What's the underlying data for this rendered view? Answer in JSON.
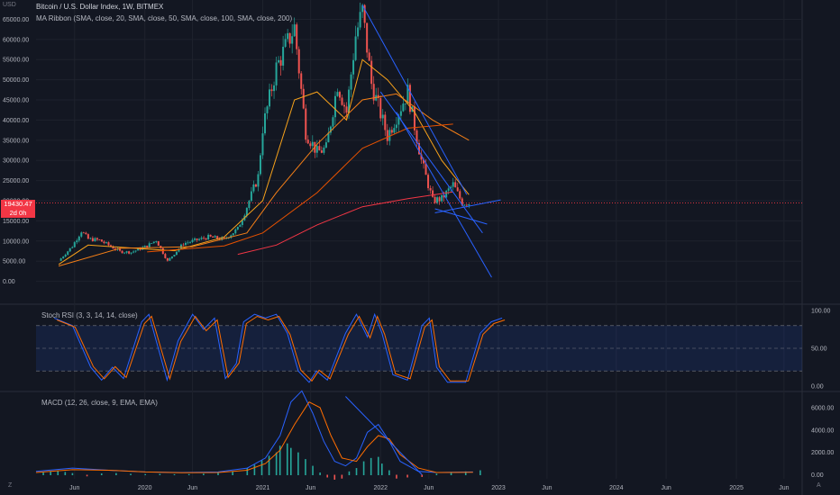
{
  "header": {
    "title": "Bitcoin / U.S. Dollar Index, 1W, BITMEX",
    "subtitle": "MA Ribbon (SMA, close, 20, SMA, close, 50, SMA, close, 100, SMA, close, 200)"
  },
  "price_box": {
    "value": "19430.47",
    "countdown": "2d 0h",
    "color": "#f23645"
  },
  "currency": "USD",
  "buttons": {
    "left": "Z",
    "right": "A"
  },
  "panes": {
    "stoch": {
      "title": "Stoch RSI (3, 3, 14, 14, close)",
      "ticks": [
        "100.00",
        "50.00",
        "0.00"
      ]
    },
    "macd": {
      "title": "MACD (12, 26, close, 9, EMA, EMA)",
      "ticks": [
        "6000.00",
        "4000.00",
        "2000.00",
        "0.00"
      ]
    }
  },
  "colors": {
    "bg": "#131722",
    "up": "#26a69a",
    "down": "#ef5350",
    "stoch_k": "#2962ff",
    "stoch_d": "#ff6d00",
    "draw": "#2962ff"
  },
  "chart_data": [
    {
      "type": "candlestick",
      "title": "Bitcoin / U.S. Dollar Index, 1W, BITMEX",
      "ylabel": "USD",
      "ylim": [
        -5000,
        68000
      ],
      "y_ticks": [
        "65000.00",
        "60000.00",
        "55000.00",
        "50000.00",
        "45000.00",
        "40000.00",
        "35000.00",
        "30000.00",
        "25000.00",
        "20000.00",
        "15000.00",
        "10000.00",
        "5000.00",
        "0.00"
      ],
      "x_ticks": [
        "Jun",
        "2020",
        "Jun",
        "2021",
        "Jun",
        "2022",
        "Jun",
        "2023",
        "Jun",
        "2024",
        "Jun",
        "2025",
        "Jun"
      ],
      "last_price": 19430.47,
      "price_path": [
        [
          "2019-04-15",
          5100
        ],
        [
          "2019-05-27",
          8700
        ],
        [
          "2019-06-24",
          12500
        ],
        [
          "2019-07-15",
          10500
        ],
        [
          "2019-08-19",
          10200
        ],
        [
          "2019-10-21",
          7400
        ],
        [
          "2019-11-25",
          7200
        ],
        [
          "2020-01-13",
          8800
        ],
        [
          "2020-02-10",
          10200
        ],
        [
          "2020-03-16",
          5000
        ],
        [
          "2020-05-04",
          9400
        ],
        [
          "2020-07-20",
          11000
        ],
        [
          "2020-09-07",
          10400
        ],
        [
          "2020-10-19",
          13000
        ],
        [
          "2020-11-16",
          18500
        ],
        [
          "2020-12-21",
          26000
        ],
        [
          "2021-01-04",
          38000
        ],
        [
          "2021-02-15",
          53000
        ],
        [
          "2021-04-12",
          63000
        ],
        [
          "2021-05-17",
          37000
        ],
        [
          "2021-06-21",
          32000
        ],
        [
          "2021-07-19",
          33000
        ],
        [
          "2021-08-23",
          49000
        ],
        [
          "2021-09-20",
          42000
        ],
        [
          "2021-10-18",
          61000
        ],
        [
          "2021-11-08",
          67000
        ],
        [
          "2021-12-06",
          49000
        ],
        [
          "2022-01-24",
          36000
        ],
        [
          "2022-03-28",
          47000
        ],
        [
          "2022-05-09",
          30000
        ],
        [
          "2022-06-13",
          20000
        ],
        [
          "2022-07-11",
          20500
        ],
        [
          "2022-08-15",
          24000
        ],
        [
          "2022-09-12",
          19500
        ],
        [
          "2022-10-03",
          19430
        ]
      ],
      "ma_ribbon": {
        "periods": [
          20,
          50,
          100,
          200
        ],
        "colors": [
          "#f7a21b",
          "#f57f17",
          "#e65100",
          "#f23645"
        ],
        "values": [
          [
            [
              "2019-04-15",
              4200
            ],
            [
              "2019-07-15",
              9000
            ],
            [
              "2020-01-13",
              8000
            ],
            [
              "2020-04-06",
              7600
            ],
            [
              "2020-09-07",
              11000
            ],
            [
              "2021-01-04",
              20000
            ],
            [
              "2021-04-12",
              45000
            ],
            [
              "2021-06-21",
              47000
            ],
            [
              "2021-09-20",
              40000
            ],
            [
              "2021-11-08",
              55000
            ],
            [
              "2022-01-24",
              50000
            ],
            [
              "2022-04-18",
              42000
            ],
            [
              "2022-07-11",
              30000
            ],
            [
              "2022-10-03",
              21500
            ]
          ],
          [
            [
              "2019-04-15",
              3800
            ],
            [
              "2019-10-21",
              8200
            ],
            [
              "2020-06-01",
              8600
            ],
            [
              "2020-11-16",
              12000
            ],
            [
              "2021-02-15",
              22000
            ],
            [
              "2021-06-21",
              34000
            ],
            [
              "2021-11-08",
              45000
            ],
            [
              "2022-02-21",
              46500
            ],
            [
              "2022-06-13",
              40000
            ],
            [
              "2022-10-03",
              35000
            ]
          ],
          [
            [
              "2020-01-13",
              7300
            ],
            [
              "2020-09-07",
              8800
            ],
            [
              "2021-01-04",
              12000
            ],
            [
              "2021-06-21",
              22000
            ],
            [
              "2021-11-08",
              33000
            ],
            [
              "2022-03-28",
              38000
            ],
            [
              "2022-08-15",
              39000
            ]
          ],
          [
            [
              "2020-10-19",
              6700
            ],
            [
              "2021-02-15",
              9000
            ],
            [
              "2021-06-21",
              14000
            ],
            [
              "2021-11-08",
              18500
            ],
            [
              "2022-03-28",
              20500
            ],
            [
              "2022-08-15",
              22200
            ]
          ]
        ]
      }
    },
    {
      "type": "line",
      "title": "Stoch RSI (3, 3, 14, 14, close)",
      "ylim": [
        0,
        100
      ],
      "levels": [
        80,
        50,
        20
      ],
      "series": [
        {
          "values": [
            [
              10,
              90
            ],
            [
              20,
              80
            ],
            [
              30,
              25
            ],
            [
              36,
              8
            ],
            [
              42,
              25
            ],
            [
              48,
              10
            ],
            [
              58,
              85
            ],
            [
              62,
              95
            ],
            [
              66,
              60
            ],
            [
              72,
              8
            ],
            [
              78,
              60
            ],
            [
              86,
              95
            ],
            [
              92,
              75
            ],
            [
              98,
              90
            ],
            [
              104,
              10
            ],
            [
              110,
              30
            ],
            [
              114,
              85
            ],
            [
              120,
              95
            ],
            [
              126,
              90
            ],
            [
              132,
              95
            ],
            [
              138,
              70
            ],
            [
              144,
              20
            ],
            [
              150,
              5
            ],
            [
              154,
              20
            ],
            [
              160,
              8
            ],
            [
              170,
              70
            ],
            [
              176,
              95
            ],
            [
              182,
              65
            ],
            [
              186,
              95
            ],
            [
              190,
              70
            ],
            [
              196,
              15
            ],
            [
              204,
              8
            ],
            [
              212,
              80
            ],
            [
              216,
              90
            ],
            [
              220,
              25
            ],
            [
              226,
              5
            ],
            [
              236,
              5
            ],
            [
              244,
              70
            ],
            [
              250,
              85
            ],
            [
              256,
              90
            ]
          ]
        }
      ]
    },
    {
      "type": "bar",
      "title": "MACD (12, 26, close, 9, EMA, EMA)",
      "ylim": [
        -200,
        7200
      ],
      "macd_line": [
        [
          0,
          300
        ],
        [
          20,
          600
        ],
        [
          40,
          400
        ],
        [
          60,
          250
        ],
        [
          80,
          200
        ],
        [
          100,
          250
        ],
        [
          116,
          600
        ],
        [
          126,
          1500
        ],
        [
          134,
          3500
        ],
        [
          140,
          6500
        ],
        [
          146,
          7500
        ],
        [
          152,
          5500
        ],
        [
          158,
          3000
        ],
        [
          164,
          1200
        ],
        [
          170,
          800
        ],
        [
          176,
          1500
        ],
        [
          182,
          3800
        ],
        [
          188,
          4500
        ],
        [
          194,
          3000
        ],
        [
          200,
          1200
        ],
        [
          210,
          300
        ],
        [
          220,
          200
        ],
        [
          240,
          250
        ]
      ],
      "signal_line": [
        [
          0,
          200
        ],
        [
          20,
          450
        ],
        [
          40,
          400
        ],
        [
          60,
          250
        ],
        [
          80,
          180
        ],
        [
          100,
          200
        ],
        [
          116,
          400
        ],
        [
          126,
          1000
        ],
        [
          134,
          2200
        ],
        [
          142,
          4500
        ],
        [
          150,
          6500
        ],
        [
          156,
          6000
        ],
        [
          162,
          3500
        ],
        [
          168,
          1500
        ],
        [
          176,
          1200
        ],
        [
          182,
          2500
        ],
        [
          188,
          3500
        ],
        [
          194,
          3200
        ],
        [
          200,
          1800
        ],
        [
          210,
          600
        ],
        [
          220,
          200
        ],
        [
          240,
          220
        ]
      ],
      "histogram": [
        [
          4,
          200
        ],
        [
          8,
          300
        ],
        [
          12,
          350
        ],
        [
          16,
          250
        ],
        [
          20,
          150
        ],
        [
          28,
          -100
        ],
        [
          36,
          120
        ],
        [
          44,
          150
        ],
        [
          52,
          90
        ],
        [
          60,
          60
        ],
        [
          68,
          80
        ],
        [
          76,
          50
        ],
        [
          84,
          60
        ],
        [
          92,
          100
        ],
        [
          100,
          180
        ],
        [
          108,
          300
        ],
        [
          116,
          600
        ],
        [
          120,
          900
        ],
        [
          124,
          1300
        ],
        [
          128,
          1700
        ],
        [
          132,
          2000
        ],
        [
          134,
          2600
        ],
        [
          138,
          2800
        ],
        [
          140,
          2400
        ],
        [
          144,
          2000
        ],
        [
          148,
          1400
        ],
        [
          152,
          800
        ],
        [
          156,
          200
        ],
        [
          160,
          -200
        ],
        [
          164,
          -400
        ],
        [
          168,
          -300
        ],
        [
          172,
          300
        ],
        [
          176,
          600
        ],
        [
          180,
          1200
        ],
        [
          184,
          1500
        ],
        [
          188,
          1600
        ],
        [
          190,
          1000
        ],
        [
          194,
          400
        ],
        [
          198,
          -300
        ],
        [
          204,
          -200
        ],
        [
          212,
          -150
        ],
        [
          220,
          100
        ],
        [
          228,
          200
        ],
        [
          236,
          300
        ],
        [
          244,
          400
        ]
      ]
    }
  ]
}
